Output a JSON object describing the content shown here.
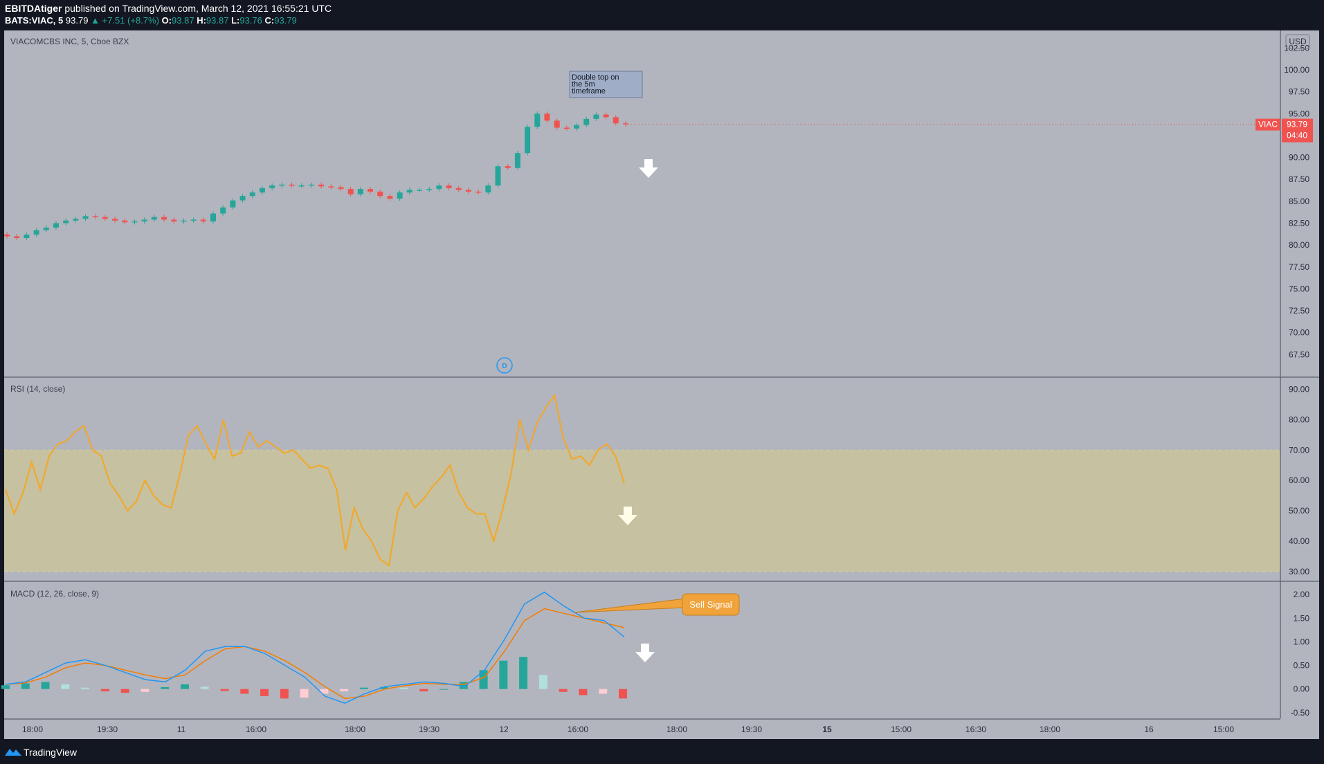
{
  "header": {
    "author": "EBITDAtiger",
    "published_text": "published on TradingView.com, March 12, 2021 16:55:21 UTC",
    "symbol": "BATS:VIAC, 5",
    "last": "93.79",
    "change": "▲ +7.51 (+8.7%)",
    "o_label": "O:",
    "o": "93.87",
    "h_label": "H:",
    "h": "93.87",
    "l_label": "L:",
    "l": "93.76",
    "c_label": "C:",
    "c": "93.79"
  },
  "footer": {
    "brand": "TradingView",
    "logo_icon": "tradingview-logo-icon"
  },
  "colors": {
    "background": "#b2b5be",
    "up": "#26a69a",
    "down": "#ef5350",
    "rsi_line": "#f5a623",
    "rsi_band": "#c9c39b",
    "macd_line": "#2196f3",
    "signal_line": "#f57c00",
    "hist_up_strong": "#26a69a",
    "hist_up_weak": "#b2dfdb",
    "hist_down_strong": "#ef5350",
    "hist_down_weak": "#ffcdd2"
  },
  "chart_data": [
    {
      "type": "candlestick",
      "title": "VIACOMCBS INC, 5, Cboe BZX",
      "currency": "USD",
      "symbol_tag": "VIAC",
      "last_price": "93.79",
      "countdown": "04:40",
      "ylim": [
        65.0,
        104.5
      ],
      "yticks": [
        "102.50",
        "100.00",
        "97.50",
        "95.00",
        "92.50",
        "90.00",
        "87.50",
        "85.00",
        "82.50",
        "80.00",
        "77.50",
        "75.00",
        "72.50",
        "70.00",
        "67.50"
      ],
      "x_labels": [
        "18:00",
        "19:30",
        "11",
        "16:00",
        "18:00",
        "19:30",
        "12",
        "16:00",
        "18:00",
        "19:30",
        "15",
        "15:00",
        "16:30",
        "18:00",
        "16",
        "15:00"
      ],
      "x_label_bold": [
        "15"
      ],
      "close": [
        81.0,
        80.8,
        81.2,
        81.7,
        82.0,
        82.5,
        82.8,
        83.0,
        83.3,
        83.2,
        83.0,
        82.8,
        82.6,
        82.7,
        82.9,
        83.2,
        82.9,
        82.7,
        82.8,
        82.9,
        82.7,
        83.6,
        84.3,
        85.1,
        85.6,
        86.0,
        86.5,
        86.8,
        86.9,
        86.8,
        86.8,
        86.9,
        86.7,
        86.6,
        86.4,
        85.8,
        86.4,
        86.1,
        85.6,
        85.3,
        86.0,
        86.3,
        86.3,
        86.4,
        86.8,
        86.5,
        86.3,
        86.1,
        86.0,
        86.8,
        89.0,
        88.8,
        90.5,
        93.5,
        95.0,
        94.2,
        93.4,
        93.3,
        93.7,
        94.4,
        94.9,
        94.6,
        93.9,
        93.79
      ],
      "annotations": [
        {
          "text": "Double top on the 5m timeframe"
        },
        {
          "marker": "D",
          "meaning": "dividend"
        }
      ],
      "arrows": [
        {
          "direction": "down",
          "icon": "down-arrow-icon"
        }
      ]
    },
    {
      "type": "line",
      "title": "RSI (14, close)",
      "ylim": [
        27.0,
        94.0
      ],
      "yticks": [
        "90.00",
        "80.00",
        "70.00",
        "60.00",
        "50.00",
        "40.00",
        "30.00"
      ],
      "band": [
        30,
        70
      ],
      "series": [
        {
          "values": [
            57,
            49,
            56,
            66,
            57,
            68,
            72,
            73,
            76,
            78,
            70,
            68,
            59,
            55,
            50,
            53,
            60,
            55,
            52,
            51,
            62,
            75,
            78,
            72,
            67,
            80,
            68,
            69,
            76,
            71,
            73,
            71,
            69,
            70,
            67,
            64,
            65,
            64,
            57,
            37,
            51,
            44,
            40,
            34,
            32,
            50,
            56,
            51,
            54,
            58,
            61,
            65,
            56,
            51,
            49,
            49,
            40,
            50,
            62,
            80,
            70,
            79,
            84,
            88,
            74,
            67,
            68,
            65,
            70,
            72,
            68,
            59
          ]
        }
      ],
      "arrows": [
        {
          "direction": "down",
          "icon": "down-arrow-icon"
        }
      ]
    },
    {
      "type": "line+histogram",
      "title": "MACD (12, 26, close, 9)",
      "ylim": [
        -0.62,
        2.28
      ],
      "yticks": [
        "2.00",
        "1.50",
        "1.00",
        "0.50",
        "0.00",
        "-0.50"
      ],
      "series": [
        {
          "values": [
            0.1,
            0.15,
            0.35,
            0.55,
            0.62,
            0.5,
            0.35,
            0.2,
            0.15,
            0.4,
            0.8,
            0.9,
            0.9,
            0.75,
            0.5,
            0.25,
            -0.15,
            -0.3,
            -0.1,
            0.05,
            0.1,
            0.15,
            0.12,
            0.05,
            0.4,
            1.05,
            1.8,
            2.05,
            1.75,
            1.5,
            1.45,
            1.1
          ]
        },
        {
          "values": [
            0.1,
            0.13,
            0.25,
            0.45,
            0.55,
            0.5,
            0.4,
            0.3,
            0.22,
            0.3,
            0.6,
            0.85,
            0.9,
            0.8,
            0.6,
            0.35,
            0.05,
            -0.2,
            -0.15,
            0,
            0.07,
            0.12,
            0.1,
            0.1,
            0.25,
            0.8,
            1.45,
            1.7,
            1.6,
            1.5,
            1.4,
            1.3
          ]
        },
        {
          "values": [
            0.08,
            0.12,
            0.15,
            0.1,
            0.03,
            -0.05,
            -0.08,
            -0.06,
            0.04,
            0.1,
            0.05,
            -0.04,
            -0.1,
            -0.15,
            -0.2,
            -0.18,
            -0.1,
            -0.05,
            0.03,
            0.04,
            0.03,
            -0.05,
            0,
            0.15,
            0.4,
            0.6,
            0.68,
            0.3,
            -0.06,
            -0.13,
            -0.1,
            -0.2
          ]
        }
      ],
      "annotations": [
        {
          "text": "Sell Signal"
        }
      ],
      "arrows": [
        {
          "direction": "down",
          "icon": "down-arrow-icon"
        }
      ]
    }
  ]
}
